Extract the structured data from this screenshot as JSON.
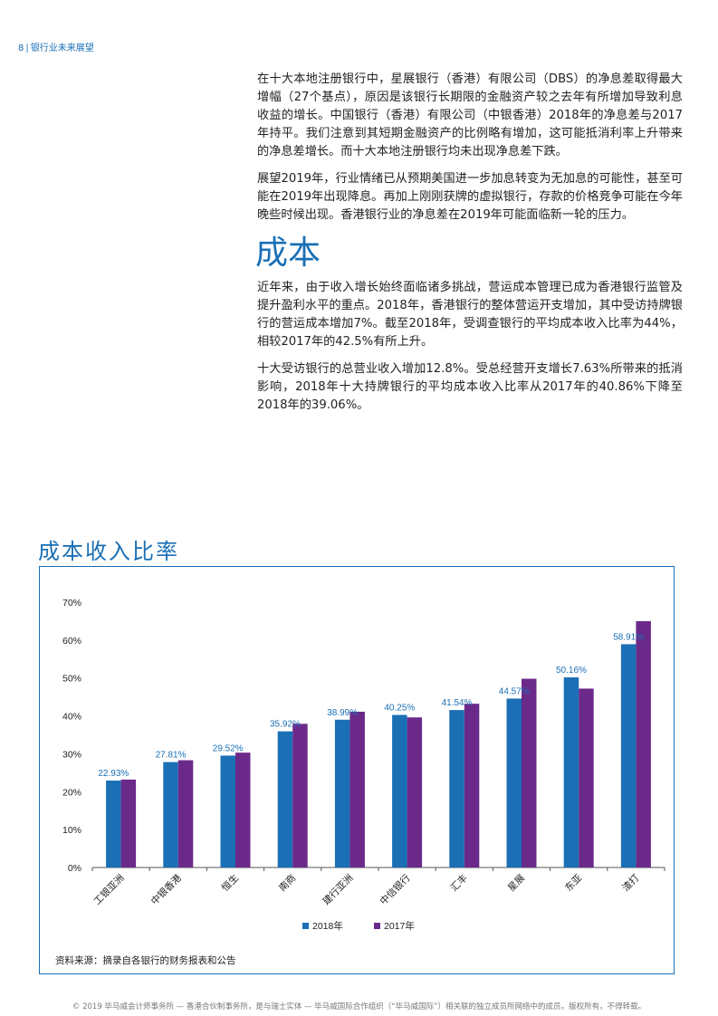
{
  "header": {
    "page_number": "8",
    "separator": "|",
    "section": "银行业未来展望"
  },
  "body": {
    "paragraphs_top": [
      "在十大本地注册银行中，星展银行（香港）有限公司（DBS）的净息差取得最大增幅（27个基点），原因是该银行长期限的金融资产较之去年有所增加导致利息收益的增长。中国银行（香港）有限公司（中银香港）2018年的净息差与2017年持平。我们注意到其短期金融资产的比例略有增加，这可能抵消利率上升带来的净息差增长。而十大本地注册银行均未出现净息差下跌。",
      "展望2019年，行业情绪已从预期美国进一步加息转变为无加息的可能性，甚至可能在2019年出现降息。再加上刚刚获牌的虚拟银行，存款的价格竞争可能在今年晚些时候出现。香港银行业的净息差在2019年可能面临新一轮的压力。"
    ],
    "section_title": "成本",
    "paragraphs_bottom": [
      "近年来，由于收入增长始终面临诸多挑战，营运成本管理已成为香港银行监管及提升盈利水平的重点。2018年，香港银行的整体营运开支增加，其中受访持牌银行的营运成本增加7%。截至2018年，受调查银行的平均成本收入比率为44%，相较2017年的42.5%有所上升。",
      "十大受访银行的总营业收入增加12.8%。受总经营开支增长7.63%所带来的抵消影响，2018年十大持牌银行的平均成本收入比率从2017年的40.86%下降至2018年的39.06%。"
    ]
  },
  "chart_title": "成本收入比率",
  "chart_data": {
    "type": "bar",
    "categories": [
      "工银亚洲",
      "中银香港",
      "恒生",
      "南商",
      "建行亚洲",
      "中信银行",
      "汇丰",
      "星展",
      "东亚",
      "渣打"
    ],
    "series": [
      {
        "name": "2018年",
        "color": "#1a6fb5",
        "values": [
          22.93,
          27.81,
          29.52,
          35.92,
          38.99,
          40.25,
          41.54,
          44.57,
          50.16,
          58.91
        ]
      },
      {
        "name": "2017年",
        "color": "#6b2a8a",
        "values": [
          23.2,
          28.3,
          30.3,
          37.9,
          41.1,
          39.6,
          43.2,
          49.8,
          47.2,
          65.0
        ]
      }
    ],
    "data_labels": [
      "22.93%",
      "27.81%",
      "29.52%",
      "35.92%",
      "38.99%",
      "40.25%",
      "41.54%",
      "44.57%",
      "50.16%",
      "58.91%"
    ],
    "y_ticks": [
      "0%",
      "10%",
      "20%",
      "30%",
      "40%",
      "50%",
      "60%",
      "70%"
    ],
    "ylim": [
      0,
      70
    ],
    "legend_position": "bottom-center",
    "grid": false
  },
  "chart_source": "资料来源：摘录自各银行的财务报表和公告",
  "footer": "© 2019 毕马威会计师事务所 — 香港合伙制事务所，是与瑞士实体 — 毕马威国际合作组织（“毕马威国际”）相关联的独立成员所网络中的成员。版权所有，不得转载。"
}
